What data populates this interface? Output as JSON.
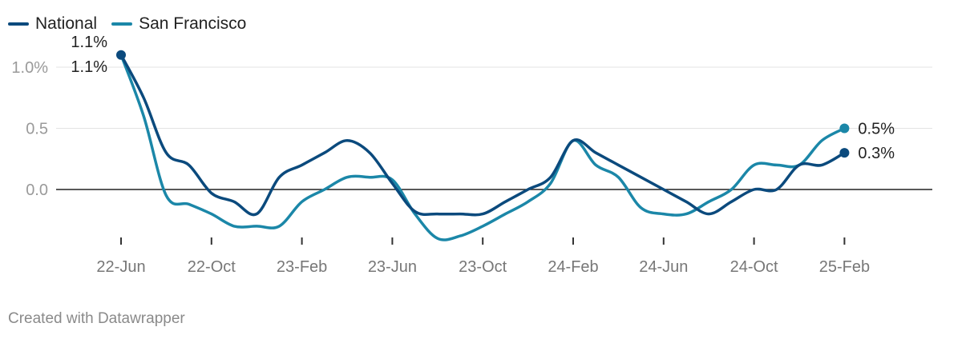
{
  "credit": "Created with Datawrapper",
  "chart_data": {
    "type": "line",
    "title": "",
    "xlabel": "",
    "ylabel": "",
    "ylim": [
      -0.45,
      1.12
    ],
    "y_ticks": [
      {
        "value": 1.0,
        "label": "1.0%"
      },
      {
        "value": 0.5,
        "label": "0.5"
      },
      {
        "value": 0.0,
        "label": "0.0"
      }
    ],
    "x_ticks": [
      {
        "index": 0,
        "label": "22-Jun"
      },
      {
        "index": 4,
        "label": "22-Oct"
      },
      {
        "index": 8,
        "label": "23-Feb"
      },
      {
        "index": 12,
        "label": "23-Jun"
      },
      {
        "index": 16,
        "label": "23-Oct"
      },
      {
        "index": 20,
        "label": "24-Feb"
      },
      {
        "index": 24,
        "label": "24-Jun"
      },
      {
        "index": 28,
        "label": "24-Oct"
      },
      {
        "index": 32,
        "label": "25-Feb"
      }
    ],
    "x": [
      "22-Jun",
      "22-Jul",
      "22-Aug",
      "22-Sep",
      "22-Oct",
      "22-Nov",
      "22-Dec",
      "23-Jan",
      "23-Feb",
      "23-Mar",
      "23-Apr",
      "23-May",
      "23-Jun",
      "23-Jul",
      "23-Aug",
      "23-Sep",
      "23-Oct",
      "23-Nov",
      "23-Dec",
      "24-Jan",
      "24-Feb",
      "24-Mar",
      "24-Apr",
      "24-May",
      "24-Jun",
      "24-Jul",
      "24-Aug",
      "24-Sep",
      "24-Oct",
      "24-Nov",
      "24-Dec",
      "25-Jan",
      "25-Feb",
      "25-Mar",
      "25-Apr",
      "25-May"
    ],
    "series": [
      {
        "name": "National",
        "color": "#0b4a7d",
        "values": [
          1.1,
          0.75,
          0.3,
          0.2,
          -0.03,
          -0.1,
          -0.2,
          0.1,
          0.2,
          0.3,
          0.4,
          0.3,
          0.05,
          -0.18,
          -0.2,
          -0.2,
          -0.2,
          -0.1,
          0.0,
          0.1,
          0.4,
          0.3,
          0.2,
          0.1,
          0.0,
          -0.1,
          -0.2,
          -0.1,
          0.0,
          0.0,
          0.2,
          0.2,
          0.3,
          null,
          null,
          null
        ],
        "end_label": "0.3%",
        "start_label": "1.1%"
      },
      {
        "name": "San Francisco",
        "color": "#1b87a8",
        "values": [
          1.1,
          0.6,
          -0.05,
          -0.12,
          -0.2,
          -0.3,
          -0.3,
          -0.3,
          -0.1,
          0.0,
          0.1,
          0.1,
          0.08,
          -0.2,
          -0.4,
          -0.38,
          -0.3,
          -0.2,
          -0.1,
          0.05,
          0.4,
          0.2,
          0.1,
          -0.15,
          -0.2,
          -0.2,
          -0.1,
          0.0,
          0.2,
          0.2,
          0.2,
          0.4,
          0.5,
          null,
          null,
          null
        ],
        "end_label": "0.5%",
        "start_label": "1.1%"
      }
    ],
    "grid": true,
    "legend": "top-left"
  }
}
